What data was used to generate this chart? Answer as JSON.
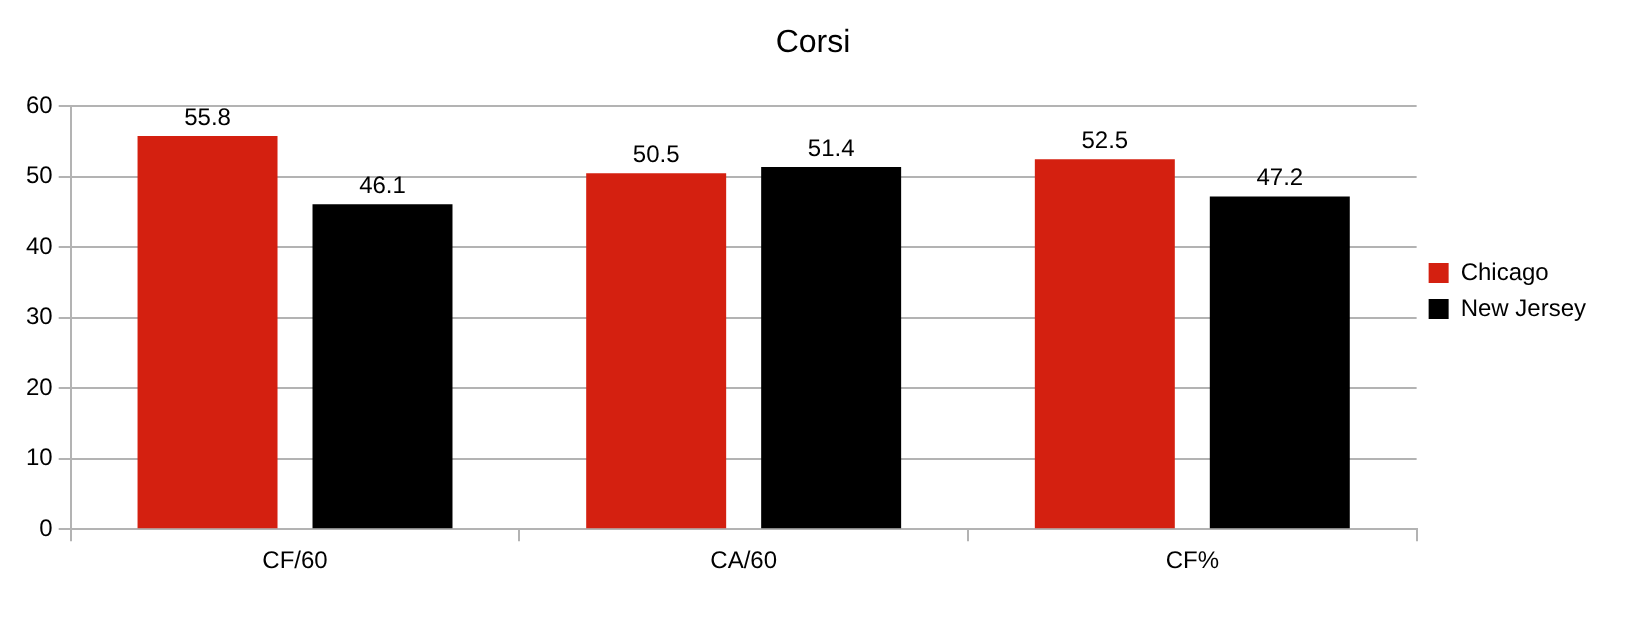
{
  "chart_data": {
    "type": "bar",
    "title": "Corsi",
    "categories": [
      "CF/60",
      "CA/60",
      "CF%"
    ],
    "series": [
      {
        "name": "Chicago",
        "color": "#d42010",
        "values": [
          55.8,
          50.5,
          52.5
        ]
      },
      {
        "name": "New Jersey",
        "color": "#000000",
        "values": [
          46.1,
          51.4,
          47.2
        ]
      }
    ],
    "ylim": [
      0,
      60
    ],
    "yticks": [
      0,
      10,
      20,
      30,
      40,
      50,
      60
    ],
    "grid": "y",
    "legend": "right",
    "data_labels": true
  }
}
